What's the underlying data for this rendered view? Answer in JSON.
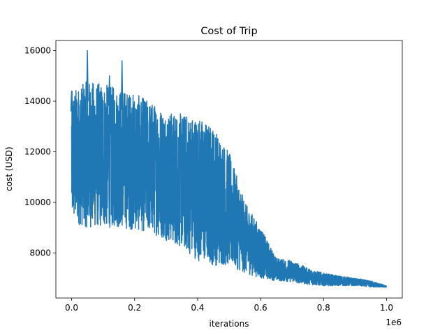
{
  "chart_data": {
    "type": "line",
    "title": "Cost of Trip",
    "xlabel": "iterations",
    "ylabel": "cost (USD)",
    "x_offset_label": "1e6",
    "x_scale": 1000000,
    "xlim": [
      -50000,
      1050000
    ],
    "ylim": [
      6220,
      16400
    ],
    "x_ticks": [
      0,
      200000,
      400000,
      600000,
      800000,
      1000000
    ],
    "x_tick_labels": [
      "0.0",
      "0.2",
      "0.4",
      "0.6",
      "0.8",
      "1.0"
    ],
    "y_ticks": [
      8000,
      10000,
      12000,
      14000,
      16000
    ],
    "y_tick_labels": [
      "8000",
      "10000",
      "12000",
      "14000",
      "16000"
    ],
    "grid": false,
    "legend": "none",
    "series": [
      {
        "color": "#1f77b4",
        "envelope_x": [
          0,
          50000,
          100000,
          150000,
          200000,
          250000,
          300000,
          350000,
          400000,
          450000,
          500000,
          550000,
          600000,
          650000,
          700000,
          750000,
          800000,
          850000,
          900000,
          950000,
          1000000
        ],
        "envelope_low": [
          9200,
          9000,
          9000,
          9000,
          8900,
          8800,
          8500,
          8200,
          7700,
          7500,
          7500,
          7200,
          7000,
          6900,
          6850,
          6750,
          6700,
          6700,
          6700,
          6650,
          6650
        ],
        "envelope_high": [
          14400,
          14800,
          14700,
          14500,
          14300,
          14000,
          13600,
          13500,
          13400,
          13000,
          12000,
          10000,
          9000,
          7800,
          7700,
          7400,
          7200,
          7100,
          7000,
          6900,
          6700
        ],
        "peaks": [
          [
            50000,
            16000
          ],
          [
            160000,
            15600
          ],
          [
            0,
            14400
          ],
          [
            120000,
            15000
          ]
        ]
      }
    ]
  }
}
